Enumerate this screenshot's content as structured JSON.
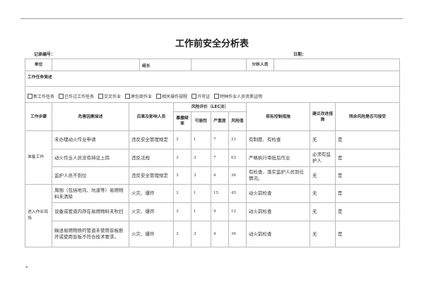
{
  "title": "工作前安全分析表",
  "record_no_label": "记录编号：",
  "date_label": "日期：",
  "info_row": {
    "unit": "单位",
    "leader": "组长",
    "analyst": "分析人员"
  },
  "task_desc_label": "工作任务简述",
  "checkboxes": [
    "新工作任务",
    "已作过工作任务",
    "交叉作业",
    "承包商作业",
    "相关操作规程",
    "许可证",
    "特种作业人员资质证明"
  ],
  "headers": {
    "step": "工作步骤",
    "hazard": "危害因素描述",
    "consequence": "后果及影响人员",
    "risk": "风险评价（LEC法）",
    "exposure": "暴露频率",
    "likelihood": "可能性",
    "severity": "严重度",
    "risk_value": "风险值",
    "controls": "现有控制措施",
    "suggest": "建议改进措施",
    "acceptable": "残余风险是否可接受"
  },
  "groups": [
    {
      "step": "准备工作",
      "rows": [
        {
          "hazard": "未办理动火作业申请",
          "consequence": "违反安全管理规定",
          "e": "3",
          "l": "1",
          "s": "7",
          "r": "21",
          "controls": "有制度、有检查",
          "suggest": "无",
          "acceptable": "是"
        },
        {
          "hazard": "动火作业人员没有持证上岗",
          "consequence": "违反法规",
          "e": "3",
          "l": "3",
          "s": "7",
          "r": "63",
          "controls": "严格执行审批后作业",
          "suggest": "必须有监护人",
          "acceptable": "是"
        },
        {
          "hazard": "监护人员不到位",
          "consequence": "违反安全管理规定",
          "e": "3",
          "l": "3",
          "s": "4",
          "r": "36",
          "controls": "有检查、落实监护人员到位情况。",
          "suggest": "无",
          "acceptable": "是"
        }
      ]
    },
    {
      "step": "进入作业现场",
      "rows": [
        {
          "hazard": "周围（包括地沟、坑道等）易燃物料未清除",
          "consequence": "火灾、爆炸",
          "e": "3",
          "l": "1",
          "s": "15",
          "r": "45",
          "controls": "动火前检查",
          "suggest": "无",
          "acceptable": "是"
        },
        {
          "hazard": "设备或管道内存在易燃物料未吹扫",
          "consequence": "火灾、爆炸",
          "e": "3",
          "l": "1",
          "s": "4",
          "r": "12",
          "controls": "动火前检查",
          "suggest": "无",
          "acceptable": "是"
        },
        {
          "hazard": "输送易燃物质的管道未使用盲板断开或使用盲板不符合技术要求。",
          "consequence": "火灾、爆炸",
          "e": "3",
          "l": "3",
          "s": "4",
          "r": "36",
          "controls": "动火前检查",
          "suggest": "无",
          "acceptable": "是"
        }
      ]
    }
  ]
}
